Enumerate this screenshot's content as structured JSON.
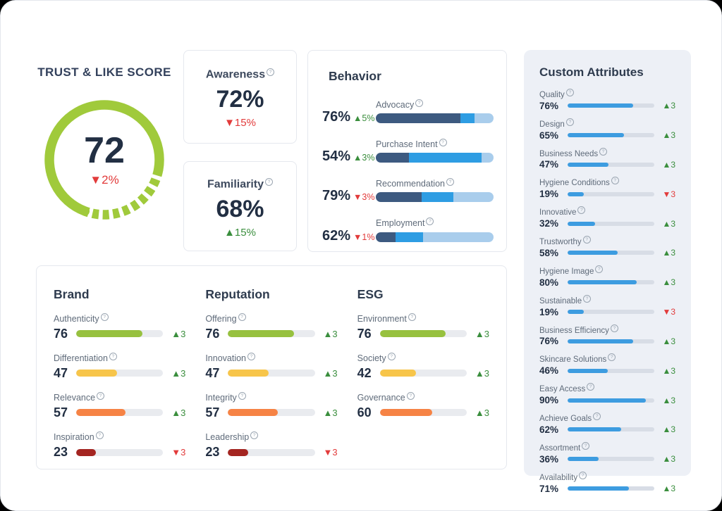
{
  "gauge": {
    "title": "TRUST & LIKE SCORE",
    "score": 72,
    "score_label": "72",
    "change": "2%",
    "direction": "down"
  },
  "stat_cards": [
    {
      "label": "Awareness",
      "value": "72%",
      "change": "15%",
      "direction": "down"
    },
    {
      "label": "Familiarity",
      "value": "68%",
      "change": "15%",
      "direction": "up"
    }
  ],
  "behavior": {
    "title": "Behavior",
    "segment_colors": [
      "#3d5a80",
      "#2e9de3",
      "#a9cdec"
    ],
    "items": [
      {
        "label": "Advocacy",
        "value": "76%",
        "change": "5%",
        "direction": "up",
        "segments": [
          72,
          12,
          16
        ]
      },
      {
        "label": "Purchase Intent",
        "value": "54%",
        "change": "3%",
        "direction": "up",
        "segments": [
          28,
          62,
          10
        ]
      },
      {
        "label": "Recommendation",
        "value": "79%",
        "change": "3%",
        "direction": "down",
        "segments": [
          39,
          27,
          34
        ]
      },
      {
        "label": "Employment",
        "value": "62%",
        "change": "1%",
        "direction": "down",
        "segments": [
          17,
          23,
          60
        ]
      }
    ]
  },
  "categories": [
    {
      "title": "Brand",
      "items": [
        {
          "label": "Authenticity",
          "value": 76,
          "color": "green",
          "change": "3",
          "direction": "up"
        },
        {
          "label": "Differentiation",
          "value": 47,
          "color": "yellow",
          "change": "3",
          "direction": "up"
        },
        {
          "label": "Relevance",
          "value": 57,
          "color": "orange",
          "change": "3",
          "direction": "up"
        },
        {
          "label": "Inspiration",
          "value": 23,
          "color": "dark_red",
          "change": "3",
          "direction": "down"
        }
      ]
    },
    {
      "title": "Reputation",
      "items": [
        {
          "label": "Offering",
          "value": 76,
          "color": "green",
          "change": "3",
          "direction": "up"
        },
        {
          "label": "Innovation",
          "value": 47,
          "color": "yellow",
          "change": "3",
          "direction": "up"
        },
        {
          "label": "Integrity",
          "value": 57,
          "color": "orange",
          "change": "3",
          "direction": "up"
        },
        {
          "label": "Leadership",
          "value": 23,
          "color": "dark_red",
          "change": "3",
          "direction": "down"
        }
      ]
    },
    {
      "title": "ESG",
      "items": [
        {
          "label": "Environment",
          "value": 76,
          "color": "green",
          "change": "3",
          "direction": "up"
        },
        {
          "label": "Society",
          "value": 42,
          "color": "yellow",
          "change": "3",
          "direction": "up"
        },
        {
          "label": "Governance",
          "value": 60,
          "color": "orange",
          "change": "3",
          "direction": "up"
        }
      ]
    }
  ],
  "custom_attributes": {
    "title": "Custom Attributes",
    "items": [
      {
        "label": "Quality",
        "value": 76,
        "change": "3",
        "direction": "up"
      },
      {
        "label": "Design",
        "value": 65,
        "change": "3",
        "direction": "up"
      },
      {
        "label": "Business Needs",
        "value": 47,
        "change": "3",
        "direction": "up"
      },
      {
        "label": "Hygiene Conditions",
        "value": 19,
        "change": "3",
        "direction": "down"
      },
      {
        "label": "Innovative",
        "value": 32,
        "change": "3",
        "direction": "up"
      },
      {
        "label": "Trustworthy",
        "value": 58,
        "change": "3",
        "direction": "up"
      },
      {
        "label": "Hygiene Image",
        "value": 80,
        "change": "3",
        "direction": "up"
      },
      {
        "label": "Sustainable",
        "value": 19,
        "change": "3",
        "direction": "down"
      },
      {
        "label": "Business Efficiency",
        "value": 76,
        "change": "3",
        "direction": "up"
      },
      {
        "label": "Skincare Solutions",
        "value": 46,
        "change": "3",
        "direction": "up"
      },
      {
        "label": "Easy Access",
        "value": 90,
        "change": "3",
        "direction": "up"
      },
      {
        "label": "Achieve Goals",
        "value": 62,
        "change": "3",
        "direction": "up"
      },
      {
        "label": "Assortment",
        "value": 36,
        "change": "3",
        "direction": "up"
      },
      {
        "label": "Availability",
        "value": 71,
        "change": "3",
        "direction": "up"
      }
    ]
  },
  "colors": {
    "gauge_green": "#a0ca3b",
    "blue": "#3d9ce0",
    "green": "#97c13f",
    "yellow": "#f7c54a",
    "orange": "#f68345",
    "dark_red": "#a42521",
    "up": "#3a8e3d",
    "down": "#e23b3b"
  }
}
